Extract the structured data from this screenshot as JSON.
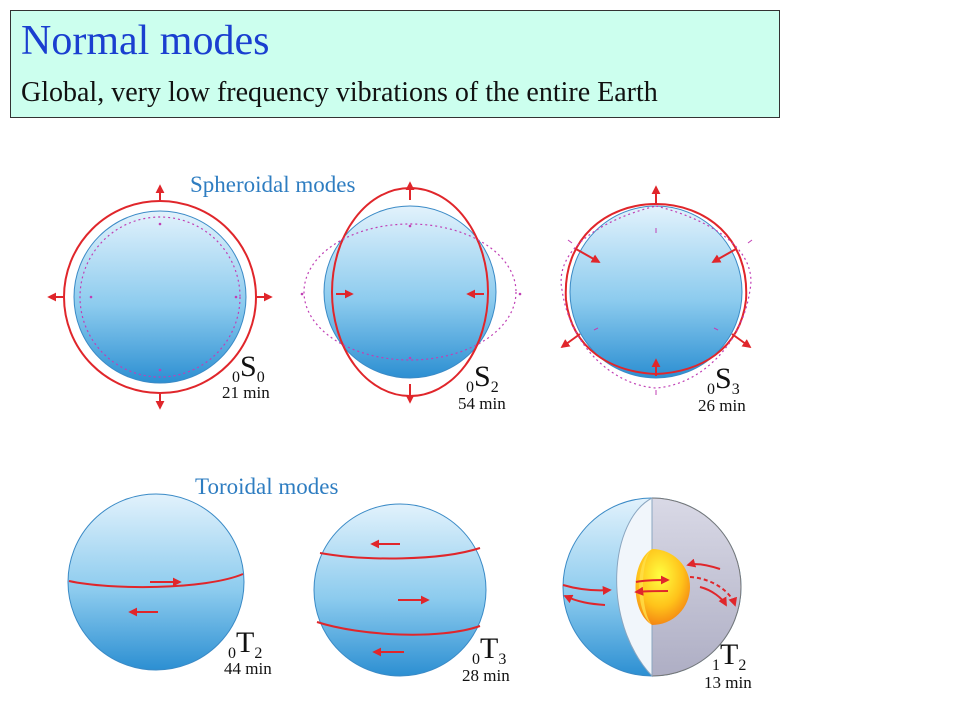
{
  "header": {
    "title": "Normal modes",
    "subtitle": "Global, very low frequency vibrations of the entire Earth"
  },
  "sections": {
    "spheroidal": "Spheroidal modes",
    "toroidal": "Toroidal modes"
  },
  "modes": [
    {
      "pre": "0",
      "letter": "S",
      "sub": "0",
      "period": "21 min"
    },
    {
      "pre": "0",
      "letter": "S",
      "sub": "2",
      "period": "54 min"
    },
    {
      "pre": "0",
      "letter": "S",
      "sub": "3",
      "period": "26 min"
    },
    {
      "pre": "0",
      "letter": "T",
      "sub": "2",
      "period": "44 min"
    },
    {
      "pre": "0",
      "letter": "T",
      "sub": "3",
      "period": "28 min"
    },
    {
      "pre": "1",
      "letter": "T",
      "sub": "2",
      "period": "13 min"
    }
  ],
  "colors": {
    "arrow": "#e0262b",
    "dotted": "#c03fb5",
    "title": "#1a3fd0",
    "section": "#2e7dc1"
  }
}
